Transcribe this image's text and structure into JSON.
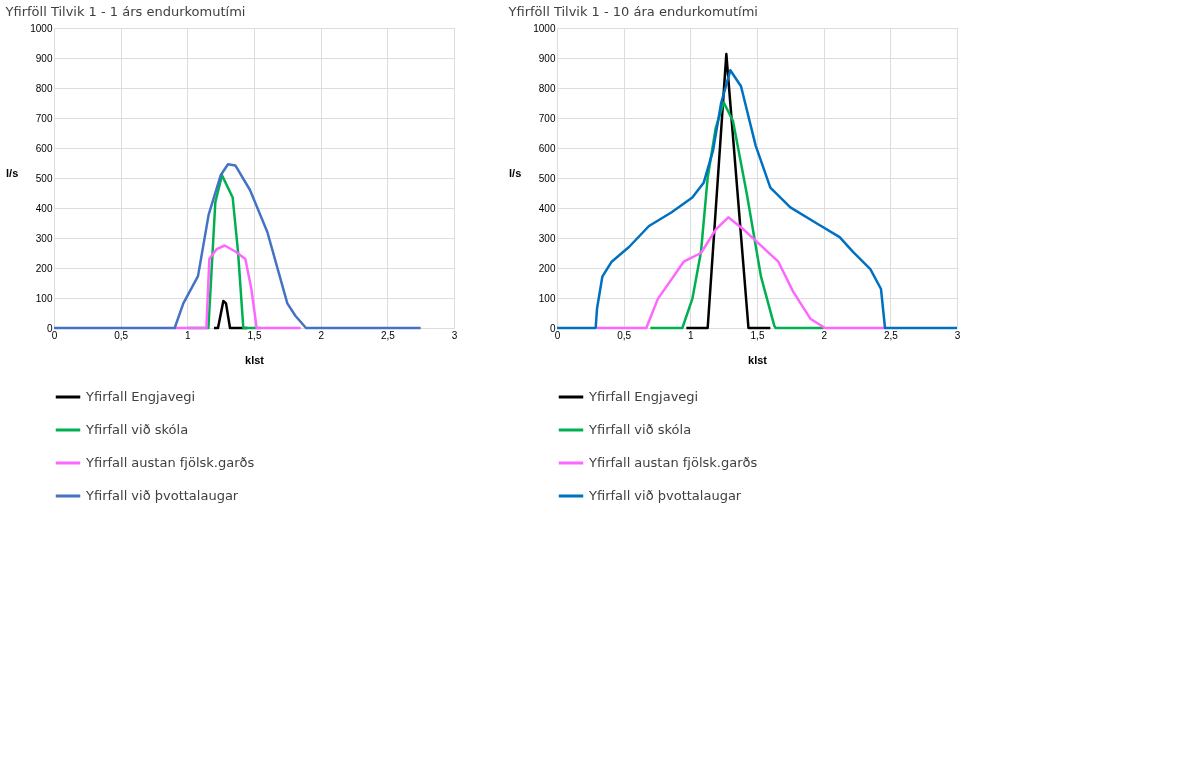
{
  "chart_data": [
    {
      "type": "line",
      "title": "Yfirföll Tilvik 1 - 1 árs endurkomutími",
      "xlabel": "klst",
      "ylabel": "l/s",
      "grid": true,
      "legend": "bottom",
      "marker": "none",
      "line_style": "solid",
      "xlim": [
        0,
        3
      ],
      "ylim": [
        0,
        1000
      ],
      "xticks": [
        0,
        {
          "value": 0.5,
          "label": "0,5"
        },
        1,
        {
          "value": 1.5,
          "label": "1,5"
        },
        2,
        {
          "value": 2.5,
          "label": "2,5"
        },
        3
      ],
      "yticks": [
        0,
        100,
        200,
        300,
        400,
        500,
        600,
        700,
        800,
        900,
        1000
      ],
      "series": [
        {
          "name": "Yfirfall Engjavegi",
          "color": "#000000",
          "x": [
            1.2,
            1.23,
            1.27,
            1.29,
            1.32,
            1.45
          ],
          "values": [
            0,
            0,
            90,
            82,
            0,
            0
          ]
        },
        {
          "name": "Yfirfall við skóla",
          "color": "#00b050",
          "x": [
            1.0,
            1.158,
            1.21,
            1.26,
            1.34,
            1.38,
            1.42,
            1.55
          ],
          "values": [
            0,
            0,
            419,
            509,
            435,
            255,
            0,
            0
          ]
        },
        {
          "name": "Yfirfall austan fjölsk.garðs",
          "color": "#ff66ff",
          "x": [
            0.9,
            1.143,
            1.165,
            1.22,
            1.28,
            1.36,
            1.435,
            1.48,
            1.52,
            1.85
          ],
          "values": [
            0,
            0,
            230,
            263,
            275,
            255,
            230,
            131,
            0,
            0
          ]
        },
        {
          "name": "Yfirfall við þvottalaugar",
          "color": "#4472c4",
          "x": [
            0,
            0.905,
            0.97,
            1.08,
            1.16,
            1.25,
            1.305,
            1.36,
            1.47,
            1.6,
            1.75,
            1.81,
            1.89,
            2.75
          ],
          "values": [
            0,
            0,
            82,
            173,
            378,
            509,
            546,
            542,
            460,
            320,
            82,
            41,
            0,
            0
          ]
        }
      ]
    },
    {
      "type": "line",
      "title": "Yfirföll Tilvik 1 - 10 ára endurkomutími",
      "xlabel": "klst",
      "ylabel": "l/s",
      "grid": true,
      "legend": "bottom",
      "marker": "none",
      "line_style": "solid",
      "xlim": [
        0,
        3
      ],
      "ylim": [
        0,
        1000
      ],
      "xticks": [
        0,
        {
          "value": 0.5,
          "label": "0,5"
        },
        1,
        {
          "value": 1.5,
          "label": "1,5"
        },
        2,
        {
          "value": 2.5,
          "label": "2,5"
        },
        3
      ],
      "yticks": [
        0,
        100,
        200,
        300,
        400,
        500,
        600,
        700,
        800,
        900,
        1000
      ],
      "series": [
        {
          "name": "Yfirfall Engjavegi",
          "color": "#000000",
          "x": [
            0.97,
            1.13,
            1.27,
            1.436,
            1.6
          ],
          "values": [
            0,
            0,
            913,
            0,
            0
          ]
        },
        {
          "name": "Yfirfall við skóla",
          "color": "#00b050",
          "x": [
            0.7,
            0.94,
            1.015,
            1.08,
            1.13,
            1.19,
            1.25,
            1.32,
            1.425,
            1.53,
            1.63,
            1.64,
            2.0
          ],
          "values": [
            0,
            0,
            97,
            254,
            501,
            666,
            752,
            690,
            443,
            171,
            7,
            0,
            0
          ]
        },
        {
          "name": "Yfirfall austan fjölsk.garðs",
          "color": "#ff66ff",
          "x": [
            0.3,
            0.67,
            0.756,
            0.86,
            0.95,
            1.08,
            1.19,
            1.285,
            1.4,
            1.58,
            1.66,
            1.77,
            1.9,
            2.01,
            2.46
          ],
          "values": [
            0,
            0,
            97,
            163,
            221,
            250,
            328,
            369,
            328,
            254,
            221,
            122,
            31,
            0,
            0
          ]
        },
        {
          "name": "Yfirfall við þvottalaugar",
          "color": "#0070c0",
          "x": [
            0,
            0.29,
            0.3,
            0.34,
            0.41,
            0.54,
            0.69,
            0.86,
            1.015,
            1.1,
            1.17,
            1.23,
            1.3,
            1.38,
            1.49,
            1.6,
            1.75,
            1.965,
            2.12,
            2.22,
            2.35,
            2.43,
            2.46,
            3.0
          ],
          "values": [
            0,
            0,
            64,
            171,
            221,
            270,
            340,
            386,
            435,
            484,
            591,
            748,
            859,
            806,
            608,
            468,
            402,
            344,
            303,
            254,
            196,
            130,
            0,
            0
          ]
        }
      ]
    }
  ]
}
